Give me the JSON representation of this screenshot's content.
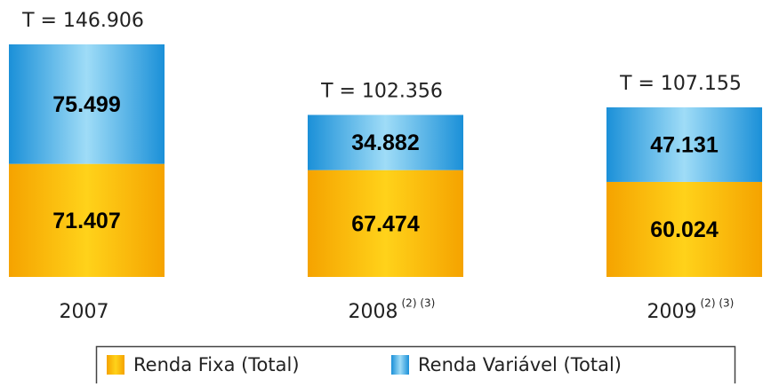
{
  "chart_data": {
    "type": "stacked_bar",
    "categories": [
      "2007",
      "2008",
      "2009"
    ],
    "category_notes": [
      null,
      "(2) (3)",
      "(2) (3)"
    ],
    "total_labels": [
      "T = 146.906",
      "T = 102.356",
      "T = 107.155"
    ],
    "series": [
      {
        "name": "Renda Fixa (Total)",
        "color": "#f5a300",
        "values": [
          71.407,
          67.474,
          60.024
        ]
      },
      {
        "name": "Renda Variável (Total)",
        "color": "#1b90d8",
        "values": [
          75.499,
          34.882,
          47.131
        ]
      }
    ],
    "legend": "bottom"
  }
}
